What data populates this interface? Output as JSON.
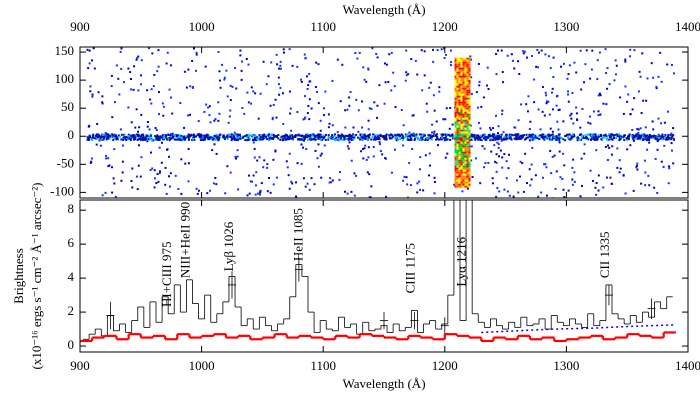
{
  "chart_data": [
    {
      "type": "image",
      "xlabel": "Wavelength (Å)",
      "xlim": [
        900,
        1400
      ],
      "xticks": [
        900,
        1000,
        1100,
        1200,
        1300,
        1400
      ],
      "ylim": [
        -110,
        159
      ],
      "yticks": [
        -100,
        -50,
        0,
        50,
        100,
        150
      ]
    },
    {
      "type": "line",
      "step": true,
      "xlabel": "Wavelength (Å)",
      "ylabel": [
        "Brightness",
        "(x10⁻¹⁶ ergs s⁻¹ cm⁻² Å⁻¹ arcsec⁻²)"
      ],
      "xlim": [
        900,
        1400
      ],
      "xticks": [
        900,
        1000,
        1100,
        1200,
        1300,
        1400
      ],
      "ylim": [
        -0.35,
        8.6
      ],
      "yticks": [
        0,
        2,
        4,
        6,
        8
      ],
      "series": [
        {
          "color": "#000000",
          "width": 0.8,
          "x": [
            905,
            910,
            915,
            920,
            925,
            930,
            935,
            940,
            945,
            950,
            955,
            960,
            965,
            970,
            975,
            980,
            985,
            990,
            995,
            1000,
            1005,
            1010,
            1015,
            1020,
            1025,
            1030,
            1035,
            1040,
            1045,
            1050,
            1055,
            1060,
            1065,
            1070,
            1075,
            1080,
            1085,
            1090,
            1095,
            1100,
            1105,
            1110,
            1115,
            1120,
            1125,
            1130,
            1135,
            1140,
            1145,
            1150,
            1155,
            1160,
            1165,
            1170,
            1175,
            1180,
            1185,
            1190,
            1195,
            1200,
            1205,
            1210,
            1215,
            1220,
            1225,
            1230,
            1235,
            1240,
            1245,
            1250,
            1255,
            1260,
            1265,
            1270,
            1275,
            1280,
            1285,
            1290,
            1295,
            1300,
            1305,
            1310,
            1315,
            1320,
            1325,
            1330,
            1335,
            1340,
            1345,
            1350,
            1355,
            1360,
            1365,
            1370,
            1375,
            1380,
            1385
          ],
          "values": [
            0.4,
            0.7,
            1.0,
            0.6,
            1.8,
            0.9,
            1.3,
            0.8,
            1.5,
            2.3,
            1.1,
            2.6,
            1.4,
            2.9,
            1.9,
            3.6,
            2.0,
            3.9,
            2.5,
            1.6,
            3.0,
            1.4,
            1.9,
            2.6,
            4.1,
            2.3,
            1.2,
            1.6,
            1.0,
            1.7,
            1.2,
            0.9,
            1.3,
            1.6,
            2.9,
            4.8,
            4.1,
            2.0,
            0.8,
            1.5,
            1.0,
            0.9,
            1.7,
            1.1,
            1.3,
            0.7,
            1.4,
            0.9,
            1.0,
            1.2,
            0.8,
            1.3,
            0.9,
            1.1,
            2.1,
            0.8,
            1.3,
            1.5,
            1.0,
            1.3,
            3.0,
            10,
            1.5,
            10,
            1.9,
            1.4,
            1.1,
            1.6,
            1.2,
            1.0,
            1.4,
            1.1,
            1.7,
            1.2,
            1.3,
            1.6,
            1.0,
            1.8,
            1.4,
            1.2,
            1.6,
            1.3,
            1.1,
            1.9,
            1.2,
            1.5,
            3.6,
            1.9,
            1.6,
            1.3,
            1.8,
            1.4,
            2.0,
            1.7,
            2.6,
            2.2,
            2.9
          ]
        },
        {
          "color": "#ff0000",
          "width": 2.2,
          "x": [
            905,
            915,
            925,
            935,
            945,
            955,
            965,
            975,
            985,
            995,
            1005,
            1015,
            1025,
            1035,
            1045,
            1055,
            1065,
            1075,
            1085,
            1095,
            1105,
            1115,
            1125,
            1135,
            1145,
            1155,
            1165,
            1175,
            1185,
            1195,
            1205,
            1215,
            1225,
            1235,
            1245,
            1255,
            1265,
            1275,
            1285,
            1295,
            1305,
            1315,
            1325,
            1335,
            1345,
            1355,
            1365,
            1375,
            1385
          ],
          "values": [
            0.3,
            0.5,
            0.6,
            0.4,
            0.7,
            0.5,
            0.6,
            0.4,
            0.7,
            0.5,
            0.6,
            0.7,
            0.5,
            0.6,
            0.4,
            0.5,
            0.7,
            0.5,
            0.6,
            0.5,
            0.4,
            0.6,
            0.5,
            0.7,
            0.6,
            0.5,
            0.4,
            0.6,
            0.5,
            0.4,
            0.7,
            0.6,
            0.5,
            0.3,
            0.5,
            0.4,
            0.6,
            0.4,
            0.5,
            0.3,
            0.4,
            0.5,
            0.6,
            0.4,
            0.5,
            0.7,
            0.6,
            0.5,
            0.8
          ]
        },
        {
          "color": "#0000ff",
          "width": 1.5,
          "linestyle": "dotted",
          "x": [
            1230,
            1260,
            1290,
            1320,
            1350,
            1390
          ],
          "values": [
            0.8,
            0.9,
            1.0,
            1.05,
            1.15,
            1.25
          ]
        }
      ],
      "errorbars": {
        "color": "#000000",
        "x": [
          925,
          1025,
          1080,
          1150,
          1175,
          1200,
          1335,
          1370
        ],
        "values": [
          1.8,
          3.6,
          4.5,
          1.5,
          1.5,
          1.2,
          3.0,
          2.2
        ],
        "errors": [
          0.8,
          0.8,
          0.7,
          0.5,
          0.5,
          0.5,
          0.6,
          0.6
        ]
      },
      "annotations": [
        {
          "text": "HI+CIII 975",
          "x": 975,
          "y": 2.3
        },
        {
          "text": "NIII+HeII 990",
          "x": 990,
          "y": 4.0
        },
        {
          "text": "Lyβ 1026",
          "x": 1026,
          "y": 4.4
        },
        {
          "text": "HeII 1085",
          "x": 1083,
          "y": 5.0
        },
        {
          "text": "CIII 1175",
          "x": 1175,
          "y": 3.1
        },
        {
          "text": "Lyα 1216",
          "x": 1217,
          "y": 3.5
        },
        {
          "text": "CII 1335",
          "x": 1335,
          "y": 4.0
        }
      ]
    }
  ]
}
